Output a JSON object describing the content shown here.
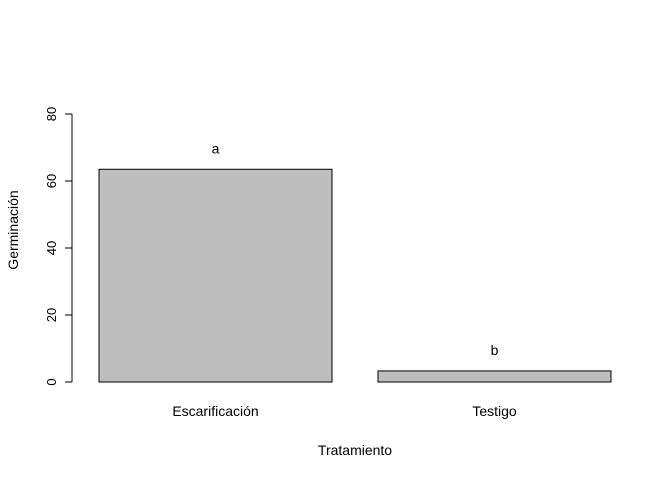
{
  "chart_data": {
    "type": "bar",
    "title": "",
    "xlabel": "Tratamiento",
    "ylabel": "Germinación",
    "categories": [
      "Escarificación",
      "Testigo"
    ],
    "values": [
      63.5,
      3.3
    ],
    "data_labels": [
      "a",
      "b"
    ],
    "ylim": [
      0,
      80
    ],
    "yticks": [
      0,
      20,
      40,
      60,
      80
    ],
    "grid": false,
    "legend": "none",
    "bar_color": "#bebebe",
    "bar_edge_color": "#000000"
  }
}
